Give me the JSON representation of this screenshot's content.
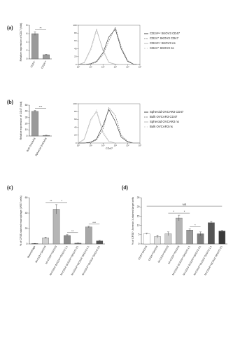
{
  "chart_data": [
    {
      "type": "bar",
      "label": "(a)",
      "y_label": "Relative expression of CD47 (fold)",
      "categories": [
        "CD24⁺",
        "CD24ˡᵒʷ"
      ],
      "values": [
        6,
        1
      ],
      "errors": [
        0.4,
        0.1
      ],
      "colors": [
        "#9a9a9a",
        "#9a9a9a"
      ],
      "ylim": [
        0,
        8
      ],
      "yticks": [
        0,
        2,
        4,
        6,
        8
      ],
      "annotations": [
        "**"
      ]
    },
    {
      "type": "line",
      "xscale": "log",
      "x": [
        1,
        3,
        10,
        30,
        100,
        300,
        1000,
        3000,
        10000,
        30000,
        100000
      ],
      "series": [
        {
          "name": "CD24ˡᵒʷ SKOV3 CD47",
          "color": "#222222",
          "dash": "none",
          "values": [
            0,
            0,
            2,
            8,
            30,
            70,
            90,
            40,
            8,
            1,
            0
          ]
        },
        {
          "name": "CD24⁺ SKOV3 CD47",
          "color": "#777777",
          "dash": "2,1",
          "values": [
            0,
            0,
            1,
            6,
            25,
            60,
            95,
            45,
            10,
            1,
            0
          ]
        },
        {
          "name": "CD24ˡᵒʷ SKOV3 ns",
          "color": "#aaaaaa",
          "dash": "none",
          "values": [
            0,
            5,
            40,
            90,
            35,
            5,
            1,
            0,
            0,
            0,
            0
          ]
        },
        {
          "name": "CD24⁺ SKOV3 ns",
          "color": "#bbbbbb",
          "dash": "1,1",
          "values": [
            0,
            4,
            35,
            85,
            40,
            6,
            1,
            0,
            0,
            0,
            0
          ]
        }
      ],
      "xlim": [
        1,
        100000
      ],
      "xticks": [
        {
          "value": 1,
          "label": "10⁰"
        },
        {
          "value": 10,
          "label": "10¹"
        },
        {
          "value": 100,
          "label": "10²"
        },
        {
          "value": 1000,
          "label": "10³"
        },
        {
          "value": 10000,
          "label": "10⁴"
        },
        {
          "value": 100000,
          "label": "10⁵"
        }
      ],
      "ylim": [
        0,
        100
      ],
      "yticks": [
        0,
        20,
        40,
        60,
        80,
        100
      ]
    },
    {
      "type": "bar",
      "label": "(b)",
      "y_label": "Relative expression of CD47 (fold)",
      "categories": [
        "Bulk OVCAR3",
        "Spheroid OVCAR3"
      ],
      "values": [
        40,
        1
      ],
      "errors": [
        1.5,
        0.3
      ],
      "colors": [
        "#9a9a9a",
        "#9a9a9a"
      ],
      "ylim": [
        0,
        50
      ],
      "yticks": [
        0,
        10,
        20,
        30,
        40,
        50
      ],
      "annotations": [
        "***"
      ]
    },
    {
      "type": "line",
      "xscale": "log",
      "x_label": "CD47",
      "x": [
        1,
        3,
        10,
        30,
        100,
        300,
        1000,
        3000,
        10000,
        30000,
        100000
      ],
      "series": [
        {
          "name": "Spheroid OVCAR3 CD47",
          "color": "#222222",
          "dash": "none",
          "values": [
            0,
            0,
            2,
            10,
            45,
            85,
            55,
            15,
            3,
            0,
            0
          ]
        },
        {
          "name": "Bulk OVCAR3 CD47",
          "color": "#666666",
          "dash": "2,1",
          "values": [
            0,
            0,
            1,
            8,
            35,
            90,
            70,
            20,
            4,
            0,
            0
          ]
        },
        {
          "name": "Spheroid OVCAR3 ns",
          "color": "#aaaaaa",
          "dash": "none",
          "values": [
            0,
            10,
            60,
            80,
            25,
            4,
            0,
            0,
            0,
            0,
            0
          ]
        },
        {
          "name": "Bulk OVCAR3 ns",
          "color": "#c4c4c4",
          "dash": "1,1",
          "values": [
            0,
            8,
            55,
            85,
            30,
            5,
            0,
            0,
            0,
            0,
            0
          ]
        }
      ],
      "xlim": [
        1,
        100000
      ],
      "xticks": [
        {
          "value": 1,
          "label": "10⁰"
        },
        {
          "value": 10,
          "label": "10¹"
        },
        {
          "value": 100,
          "label": "10²"
        },
        {
          "value": 1000,
          "label": "10³"
        },
        {
          "value": 10000,
          "label": "10⁴"
        },
        {
          "value": 100000,
          "label": "10⁵"
        }
      ],
      "ylim": [
        0,
        100
      ],
      "yticks": [
        0,
        20,
        40,
        60,
        80,
        100
      ]
    },
    {
      "type": "bar",
      "label": "(c)",
      "y_label": "% of CFSE-stained macrophage (U937 cells)",
      "categories": [
        "Macrophage",
        "M+CD24⁺SKOV3",
        "M+CD24ˡᵒʷSKOV3",
        "M+CD24⁺&CD24ˡᵒʷSKOV3 1:1",
        "M+CD24⁺&CD24ˡᵒʷSKOV3 3:1",
        "M+CD24ˡᵒʷ&CD24⁺SKOV3 1:1",
        "M+CD24ˡᵒʷ&CD24⁺SKOV3 3:1"
      ],
      "values": [
        0.5,
        8,
        45,
        11,
        1,
        22,
        4
      ],
      "errors": [
        0.2,
        0.8,
        6,
        1,
        0.3,
        1,
        0.6
      ],
      "colors": [
        "#444444",
        "#cfcfcf",
        "#b5b5b5",
        "#8d8d8d",
        "#6f6f6f",
        "#a8a8a8",
        "#555555"
      ],
      "ylim": [
        0,
        60
      ],
      "yticks": [
        0,
        20,
        40,
        60
      ],
      "annotations": [
        "**",
        "*",
        "**",
        "***"
      ]
    },
    {
      "type": "bar",
      "label": "(d)",
      "y_label": "% of CFSE⁺ Annexin-V-stained target cells",
      "categories": [
        "CD24⁺SKOV3",
        "CD24ˡᵒʷSKOV3",
        "M+CD24⁺SKOV3",
        "M+CD24ˡᵒʷSKOV3",
        "M+CD24⁺&CD24ˡᵒʷSKOV3 1:1",
        "M+CD24⁺&CD24ˡᵒʷSKOV3 3:1",
        "M+CD24ˡᵒʷ&CD24⁺SKOV3 1:1",
        "M+CD24ˡᵒʷ&CD24⁺SKOV3 3:1"
      ],
      "values": [
        5.5,
        4,
        5.5,
        14,
        7.5,
        5.5,
        11.5,
        7
      ],
      "errors": [
        0.3,
        0.8,
        1,
        1.5,
        0.6,
        1,
        0.8,
        0.3
      ],
      "colors": [
        "#ffffff",
        "#e0e0e0",
        "#cfcfcf",
        "#b5b5b5",
        "#9a9a9a",
        "#7d7d7d",
        "#555555",
        "#3a3a3a"
      ],
      "ylim": [
        0,
        25
      ],
      "yticks": [
        0,
        5,
        10,
        15,
        20,
        25
      ],
      "annotations": [
        "*",
        "*",
        "*",
        "NS"
      ]
    }
  ]
}
